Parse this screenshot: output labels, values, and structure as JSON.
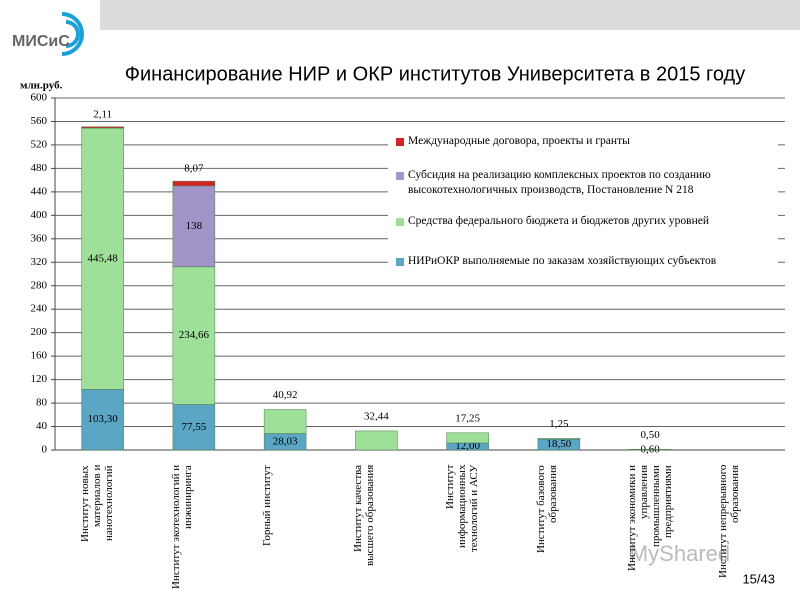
{
  "header": {
    "logo": "МИСиС",
    "page_number": "15/43",
    "watermark": "MyShared"
  },
  "chart_data": {
    "type": "stacked_bar",
    "title": "Финансирование НИР и ОКР институтов Университета в 2015 году",
    "y_label": "млн.руб.",
    "categories": [
      "Институт новых материалов и нанотехнологий",
      "Институт экотехнологий и инжиниринга",
      "Горный институт",
      "Институт качества высшего образования",
      "Институт информационных технологий и АСУ",
      "Институт базового образования",
      "Институт экономики и управления промышленными предприятиями",
      "Институт непрерывного образования"
    ],
    "series": [
      {
        "name": "НИРиОКР выполняемые по заказам хозяйствующих субъектов",
        "color": "#5aa6c4",
        "values": [
          103.3,
          77.55,
          28.03,
          null,
          12.0,
          18.5,
          0.6,
          null
        ],
        "value_labels": [
          "103,30",
          "77,55",
          "28,03",
          null,
          "12,00",
          "18,50",
          "0,60",
          null
        ]
      },
      {
        "name": "Средства федерального бюджета и бюджетов других уровней",
        "color": "#9ee09a",
        "values": [
          445.48,
          234.66,
          40.92,
          32.44,
          17.25,
          1.25,
          0.5,
          null
        ],
        "value_labels": [
          "445,48",
          "234,66",
          "40,92",
          "32,44",
          "17,25",
          "1,25",
          "0,50",
          null
        ]
      },
      {
        "name": "Субсидия на реализацию комплексных проектов по созданию высокотехнологичных производств, Постановление N 218",
        "color": "#a394c8",
        "values": [
          null,
          138,
          null,
          null,
          null,
          null,
          null,
          null
        ]
      },
      {
        "name": "Международные договора, проекты и гранты",
        "color": "#d62222",
        "values": [
          2.11,
          8.07,
          null,
          null,
          null,
          null,
          null,
          null
        ],
        "value_labels": [
          "2,11",
          "8,07",
          null,
          null,
          null,
          null,
          null,
          null
        ]
      }
    ],
    "ylim": [
      0,
      600
    ],
    "yticks": [
      0,
      40,
      80,
      120,
      160,
      200,
      240,
      280,
      320,
      360,
      400,
      440,
      480,
      520,
      560,
      600
    ],
    "grid": true,
    "legend": "right"
  }
}
